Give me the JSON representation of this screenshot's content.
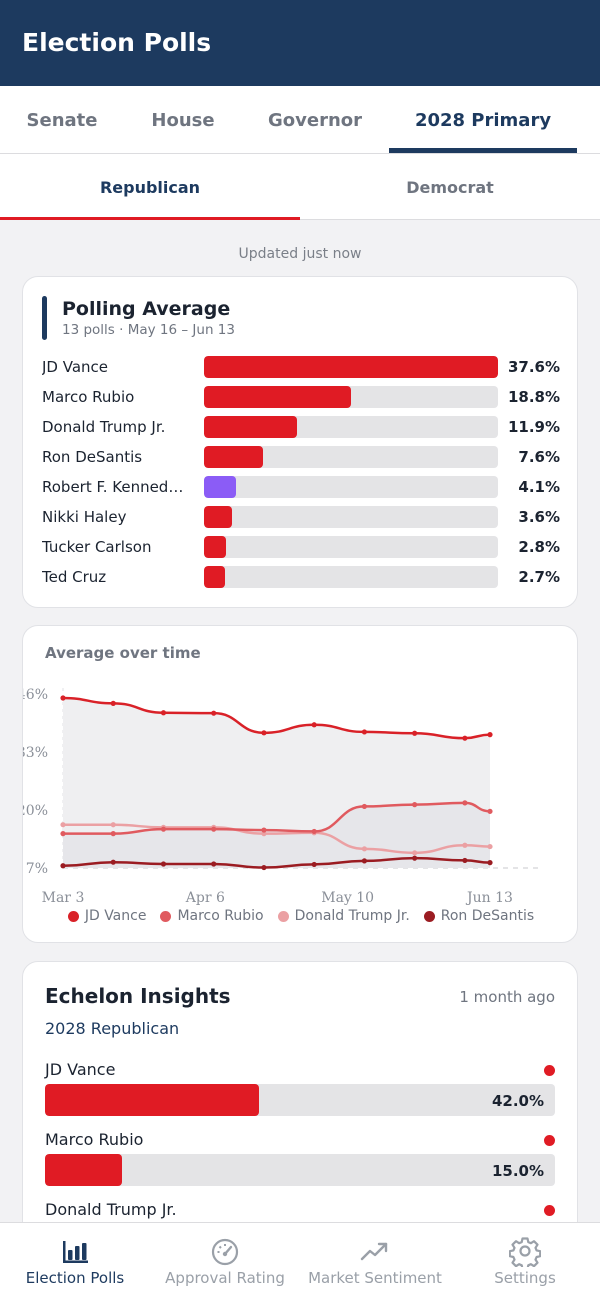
{
  "app": {
    "title": "Election Polls"
  },
  "tabs": [
    {
      "label": "Senate"
    },
    {
      "label": "House"
    },
    {
      "label": "Governor"
    },
    {
      "label": "2028 Primary"
    }
  ],
  "subtabs": [
    {
      "label": "Republican"
    },
    {
      "label": "Democrat"
    }
  ],
  "updated": "Updated just now",
  "average": {
    "title": "Polling Average",
    "subtitle": "13 polls · May 16 – Jun 13",
    "candidates": [
      {
        "name": "JD Vance",
        "value": "37.6%",
        "pct": 37.6,
        "color": "#e01b24"
      },
      {
        "name": "Marco Rubio",
        "value": "18.8%",
        "pct": 18.8,
        "color": "#e01b24"
      },
      {
        "name": "Donald Trump Jr.",
        "value": "11.9%",
        "pct": 11.9,
        "color": "#e01b24"
      },
      {
        "name": "Ron DeSantis",
        "value": "7.6%",
        "pct": 7.6,
        "color": "#e01b24"
      },
      {
        "name": "Robert F. Kenned…",
        "value": "4.1%",
        "pct": 4.1,
        "color": "#8b5cf6"
      },
      {
        "name": "Nikki Haley",
        "value": "3.6%",
        "pct": 3.6,
        "color": "#e01b24"
      },
      {
        "name": "Tucker Carlson",
        "value": "2.8%",
        "pct": 2.8,
        "color": "#e01b24"
      },
      {
        "name": "Ted Cruz",
        "value": "2.7%",
        "pct": 2.7,
        "color": "#e01b24"
      }
    ]
  },
  "trend": {
    "title": "Average over time",
    "chart_data": {
      "type": "line",
      "title": "Average over time",
      "y_ticks": [
        "7%",
        "20%",
        "33%",
        "46%"
      ],
      "ylim": [
        7,
        46
      ],
      "x_ticks": [
        {
          "label": "Mar 3",
          "day": 0
        },
        {
          "label": "Apr 6",
          "day": 34
        },
        {
          "label": "May 10",
          "day": 68
        },
        {
          "label": "Jun 13",
          "day": 102
        }
      ],
      "xlim": [
        0,
        102
      ],
      "series": [
        {
          "name": "JD Vance",
          "color": "#d92128",
          "x": [
            0,
            12,
            24,
            36,
            48,
            60,
            72,
            84,
            96,
            108
          ],
          "y": [
            45.1,
            43.9,
            41.8,
            41.7,
            37.3,
            39.1,
            37.5,
            37.2,
            36.1,
            36.9
          ]
        },
        {
          "name": "Marco Rubio",
          "color": "#e05a5f",
          "x": [
            0,
            12,
            24,
            36,
            48,
            60,
            72,
            84,
            96,
            108
          ],
          "y": [
            14.7,
            14.7,
            15.7,
            15.7,
            15.5,
            15.2,
            20.8,
            21.2,
            21.6,
            19.7
          ]
        },
        {
          "name": "Donald Trump Jr.",
          "color": "#eba0a3",
          "x": [
            0,
            12,
            24,
            36,
            48,
            60,
            72,
            84,
            96,
            108
          ],
          "y": [
            16.7,
            16.7,
            16.1,
            16.1,
            14.7,
            14.9,
            11.3,
            10.4,
            12.1,
            11.8
          ]
        },
        {
          "name": "Ron DeSantis",
          "color": "#9b1c22",
          "x": [
            0,
            12,
            24,
            36,
            48,
            60,
            72,
            84,
            96,
            108
          ],
          "y": [
            7.5,
            8.3,
            7.9,
            7.9,
            7.1,
            7.8,
            8.6,
            9.2,
            8.7,
            8.2
          ]
        }
      ]
    }
  },
  "poll": {
    "pollster": "Echelon Insights",
    "age": "1 month ago",
    "race": "2028 Republican",
    "results": [
      {
        "name": "JD Vance",
        "value": "42.0%",
        "pct": 42.0
      },
      {
        "name": "Marco Rubio",
        "value": "15.0%",
        "pct": 15.0
      },
      {
        "name": "Donald Trump Jr.",
        "value": "",
        "pct": 0
      }
    ]
  },
  "nav": [
    {
      "label": "Election Polls",
      "icon": "bar-chart-icon"
    },
    {
      "label": "Approval Rating",
      "icon": "gauge-icon"
    },
    {
      "label": "Market Sentiment",
      "icon": "trend-up-icon"
    },
    {
      "label": "Settings",
      "icon": "gear-icon"
    }
  ]
}
